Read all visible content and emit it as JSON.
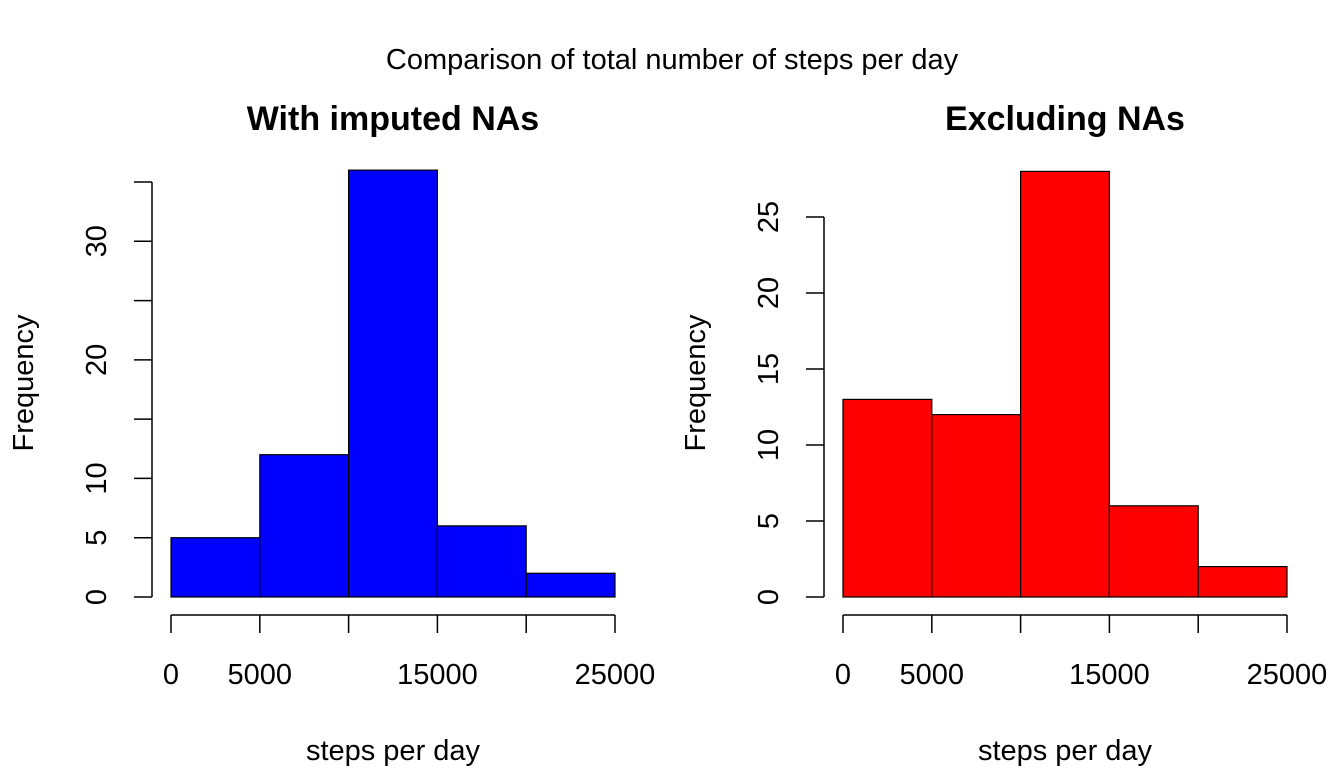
{
  "main_title": "Comparison of total number of steps per day",
  "chart_data": [
    {
      "type": "bar",
      "title": "With imputed NAs",
      "xlabel": "steps per day",
      "ylabel": "Frequency",
      "bin_edges": [
        0,
        5000,
        10000,
        15000,
        20000,
        25000
      ],
      "values": [
        5,
        12,
        36,
        6,
        2
      ],
      "xlim": [
        0,
        25000
      ],
      "ylim": [
        0,
        35
      ],
      "x_ticks": [
        0,
        5000,
        10000,
        15000,
        20000,
        25000
      ],
      "x_tick_labels": [
        "0",
        "5000",
        "",
        "15000",
        "",
        "25000"
      ],
      "y_ticks": [
        0,
        5,
        10,
        15,
        20,
        25,
        30,
        35
      ],
      "y_tick_labels": [
        "0",
        "5",
        "10",
        "",
        "20",
        "",
        "30",
        ""
      ],
      "bar_color": "#0000ff",
      "grid": false,
      "legend": "none"
    },
    {
      "type": "bar",
      "title": "Excluding NAs",
      "xlabel": "steps per day",
      "ylabel": "Frequency",
      "bin_edges": [
        0,
        5000,
        10000,
        15000,
        20000,
        25000
      ],
      "values": [
        13,
        12,
        28,
        6,
        2
      ],
      "xlim": [
        0,
        25000
      ],
      "ylim": [
        0,
        25
      ],
      "x_ticks": [
        0,
        5000,
        10000,
        15000,
        20000,
        25000
      ],
      "x_tick_labels": [
        "0",
        "5000",
        "",
        "15000",
        "",
        "25000"
      ],
      "y_ticks": [
        0,
        5,
        10,
        15,
        20,
        25
      ],
      "y_tick_labels": [
        "0",
        "5",
        "10",
        "15",
        "20",
        "25"
      ],
      "bar_color": "#ff0000",
      "grid": false,
      "legend": "none"
    }
  ]
}
